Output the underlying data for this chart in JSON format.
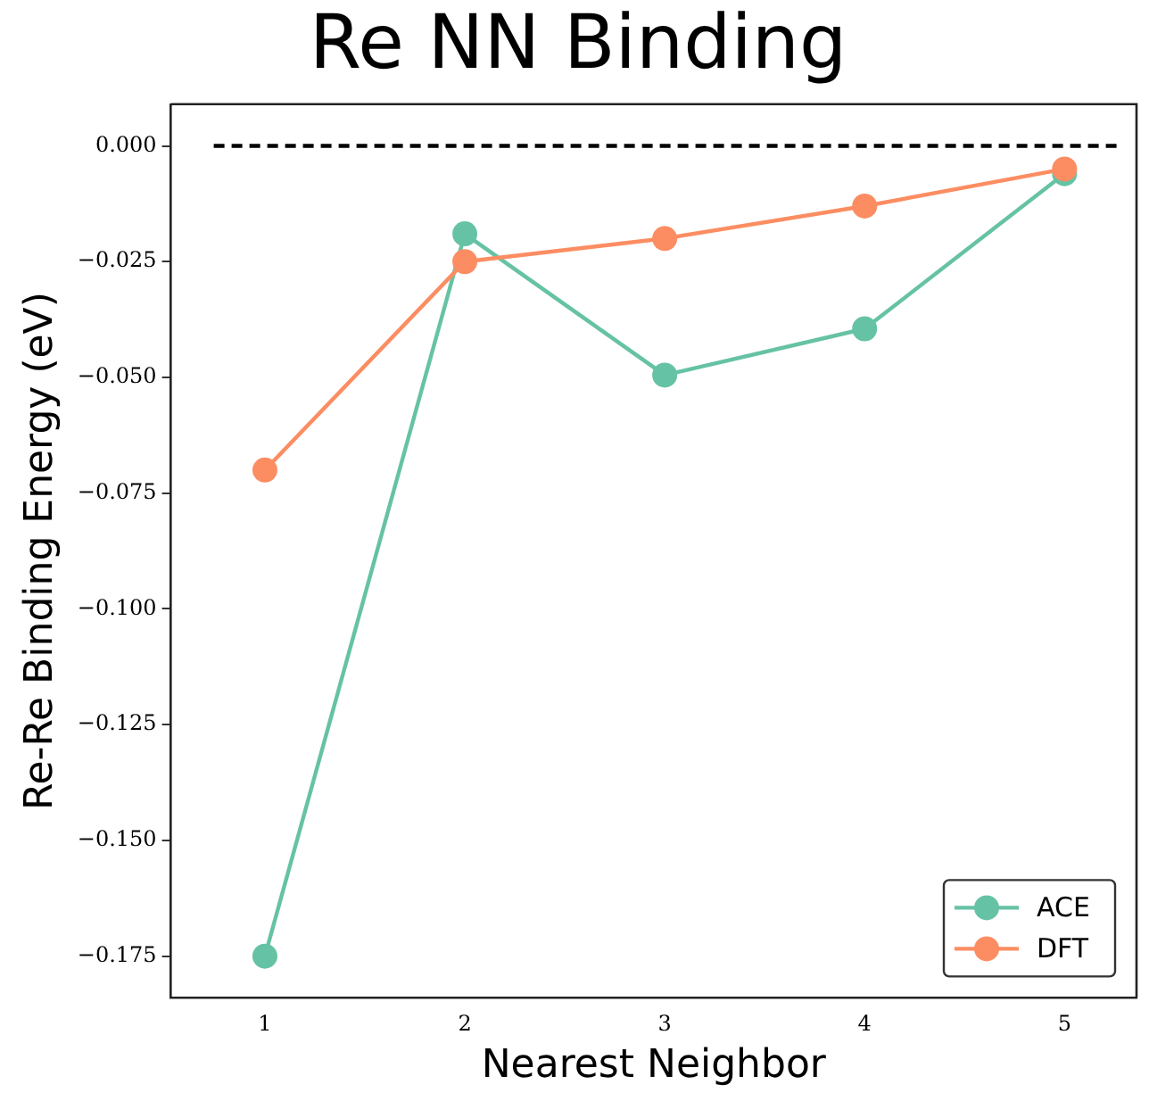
{
  "chart_data": {
    "type": "line",
    "title": "Re NN Binding",
    "xlabel": "Nearest Neighbor",
    "ylabel": "Re-Re Binding Energy (eV)",
    "x": [
      1,
      2,
      3,
      4,
      5
    ],
    "series": [
      {
        "name": "ACE",
        "color": "#66c2a5",
        "values": [
          -0.175,
          -0.019,
          -0.0495,
          -0.0395,
          -0.006
        ]
      },
      {
        "name": "DFT",
        "color": "#fc8d62",
        "values": [
          -0.07,
          -0.025,
          -0.02,
          -0.013,
          -0.005
        ]
      }
    ],
    "xlim": [
      0.53,
      5.36
    ],
    "xticks": [
      1,
      2,
      3,
      4,
      5
    ],
    "ylim": [
      -0.184,
      0.009
    ],
    "yticks": [
      {
        "value": 0,
        "label": "0.000"
      },
      {
        "value": -0.025,
        "label": "−0.025"
      },
      {
        "value": -0.05,
        "label": "−0.050"
      },
      {
        "value": -0.075,
        "label": "−0.075"
      },
      {
        "value": -0.1,
        "label": "−0.100"
      },
      {
        "value": -0.125,
        "label": "−0.125"
      },
      {
        "value": -0.15,
        "label": "−0.150"
      },
      {
        "value": -0.175,
        "label": "−0.175"
      }
    ],
    "ref_lines": [
      {
        "axis": "y",
        "value": 0,
        "color": "#000000",
        "line_style": "dashed"
      }
    ],
    "legend": "bottom right",
    "marker": "circle",
    "line_style": "solid",
    "grid": false
  }
}
